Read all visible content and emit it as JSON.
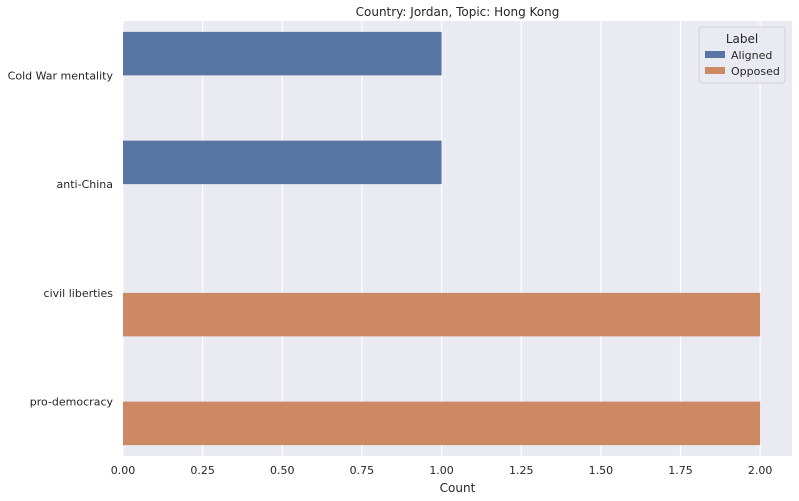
{
  "chart_data": {
    "type": "bar",
    "orientation": "horizontal",
    "title": "Country: Jordan, Topic: Hong Kong",
    "xlabel": "Count",
    "ylabel": "",
    "categories": [
      "Cold War mentality",
      "anti-China",
      "civil liberties",
      "pro-democracy"
    ],
    "series": [
      {
        "name": "Aligned",
        "color": "#5875a4",
        "values": [
          1,
          1,
          0,
          0
        ]
      },
      {
        "name": "Opposed",
        "color": "#cc8963",
        "values": [
          0,
          0,
          2,
          2
        ]
      }
    ],
    "xlim": [
      0,
      2.1
    ],
    "xticks": [
      0,
      0.25,
      0.5,
      0.75,
      1.0,
      1.25,
      1.5,
      1.75,
      2.0
    ],
    "xtick_labels": [
      "0.00",
      "0.25",
      "0.50",
      "0.75",
      "1.00",
      "1.25",
      "1.50",
      "1.75",
      "2.00"
    ],
    "grid": true,
    "legend": {
      "title": "Label",
      "position": "top-right"
    },
    "colors": {
      "plot_background": "#eaeaf2",
      "grid": "#ffffff"
    }
  }
}
